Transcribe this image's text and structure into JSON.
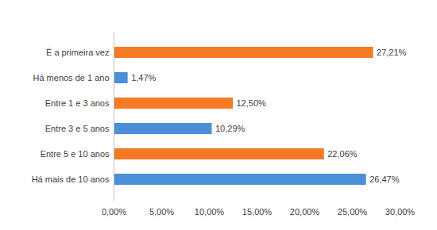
{
  "chart_data": {
    "type": "bar",
    "orientation": "horizontal",
    "categories": [
      "É a primeira vez",
      "Há menos de 1 ano",
      "Entre 1 e 3 anos",
      "Entre 3 e 5 anos",
      "Entre 5 e 10 anos",
      "Há mais de 10 anos"
    ],
    "values": [
      27.21,
      1.47,
      12.5,
      10.29,
      22.06,
      26.47
    ],
    "value_labels": [
      "27,21%",
      "1,47%",
      "12,50%",
      "10,29%",
      "22,06%",
      "26,47%"
    ],
    "colors": [
      "#f57a23",
      "#4a8fd8",
      "#f57a23",
      "#4a8fd8",
      "#f57a23",
      "#4a8fd8"
    ],
    "xlim": [
      0,
      30
    ],
    "xticks": [
      {
        "value": 0,
        "label": "0,00%"
      },
      {
        "value": 5,
        "label": "5,00%"
      },
      {
        "value": 10,
        "label": "10,00%"
      },
      {
        "value": 15,
        "label": "15,00%"
      },
      {
        "value": 20,
        "label": "20,00%"
      },
      {
        "value": 25,
        "label": "25,00%"
      },
      {
        "value": 30,
        "label": "30,00%"
      }
    ],
    "grid": false,
    "data_labels": true
  }
}
